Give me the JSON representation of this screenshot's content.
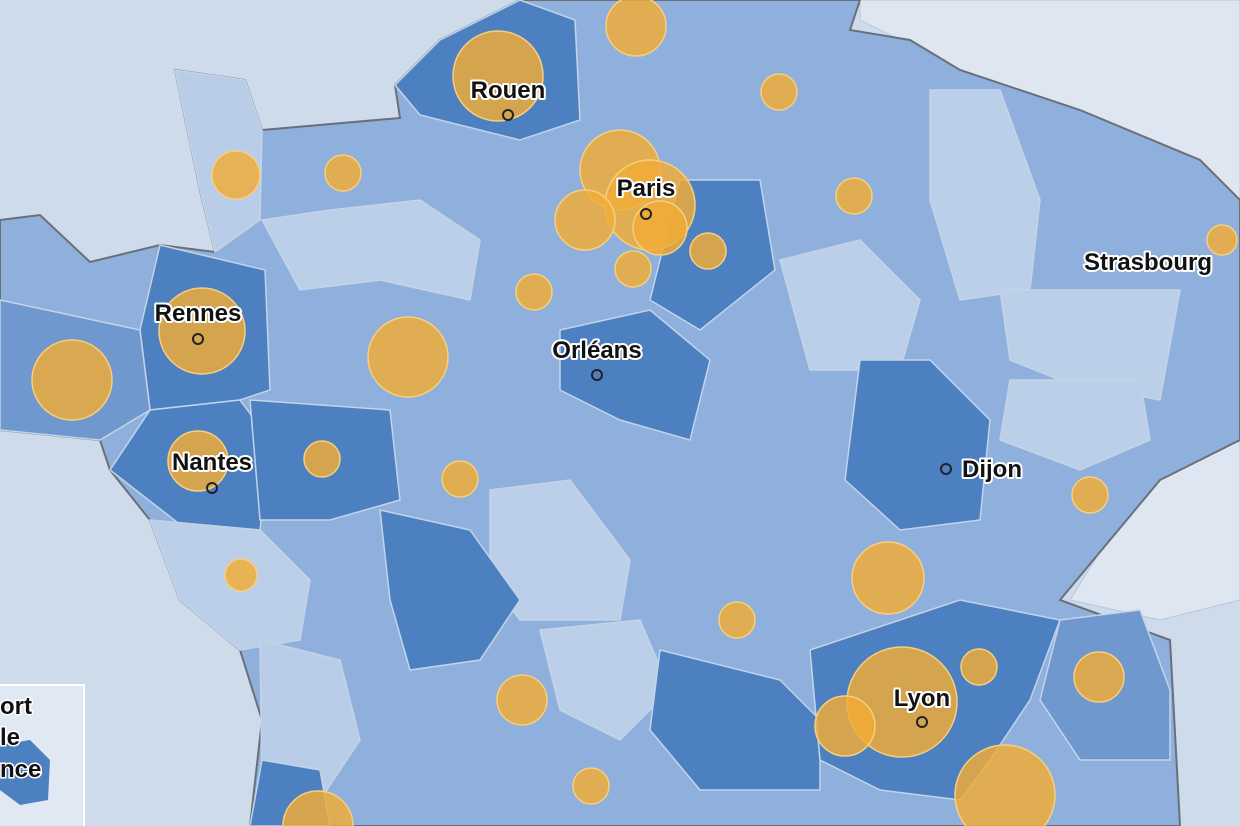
{
  "cities": [
    {
      "label": "Rouen"
    },
    {
      "label": "Paris"
    },
    {
      "label": "Strasbourg"
    },
    {
      "label": "Rennes"
    },
    {
      "label": "Orléans"
    },
    {
      "label": "Nantes"
    },
    {
      "label": "Dijon"
    },
    {
      "label": "Lyon"
    }
  ],
  "legend": {
    "lines": [
      "ort",
      "le",
      "nce"
    ]
  }
}
